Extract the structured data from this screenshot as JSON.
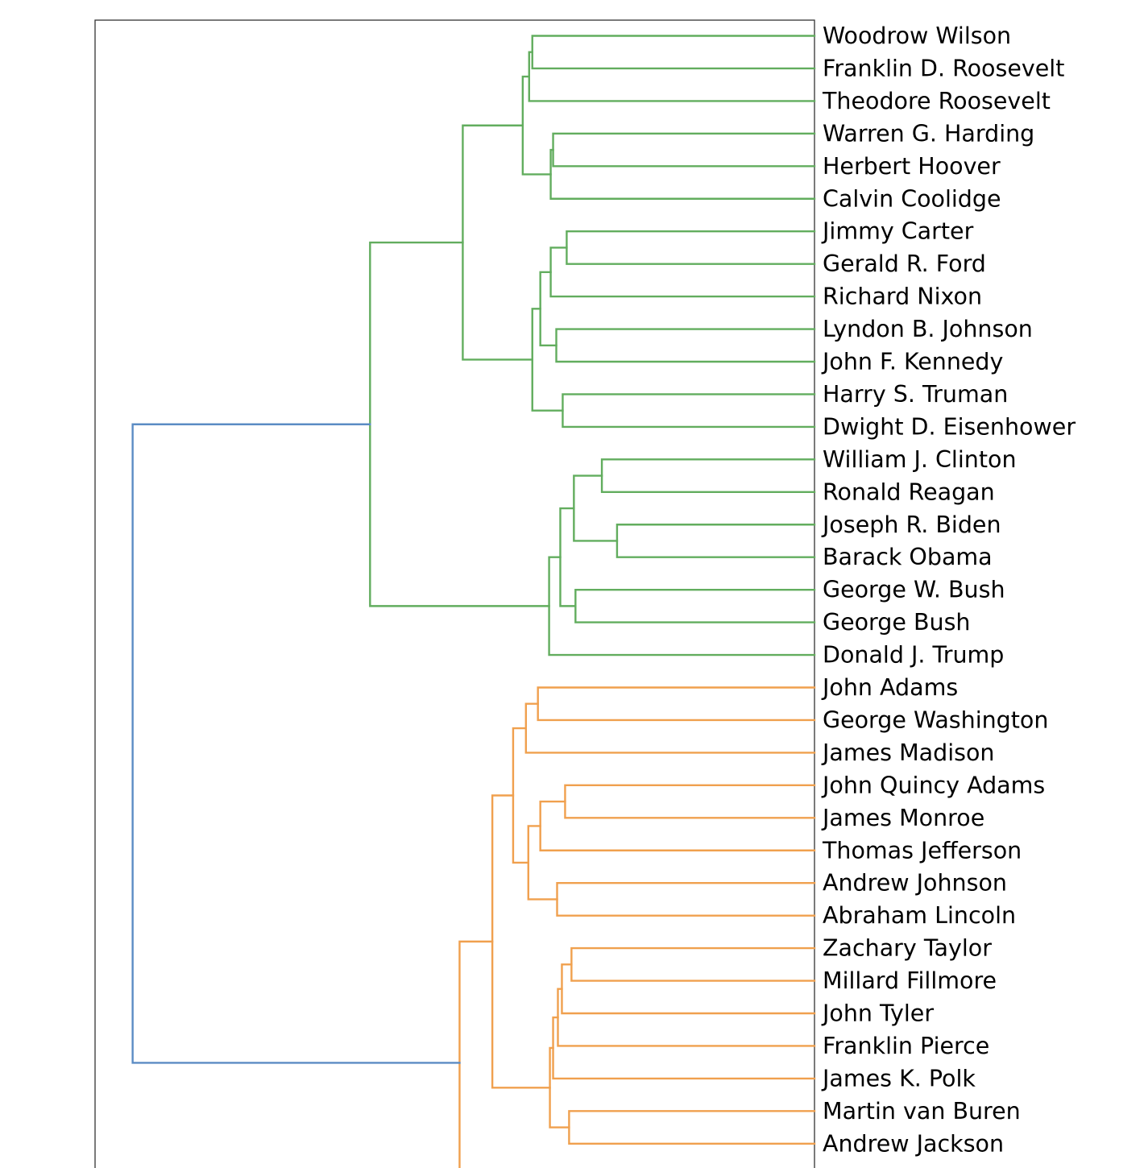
{
  "chart_data": {
    "type": "dendrogram",
    "orientation": "right",
    "title": "",
    "xlabel": "",
    "ylabel": "",
    "grid": false,
    "colors": {
      "green": "#62ad5e",
      "orange": "#f0a04e",
      "blue": "#5b8cc4"
    },
    "leaves": [
      "Woodrow Wilson",
      "Franklin D. Roosevelt",
      "Theodore Roosevelt",
      "Warren G. Harding",
      "Herbert Hoover",
      "Calvin Coolidge",
      "Jimmy Carter",
      "Gerald R. Ford",
      "Richard Nixon",
      "Lyndon B. Johnson",
      "John F. Kennedy",
      "Harry S. Truman",
      "Dwight D. Eisenhower",
      "William J. Clinton",
      "Ronald Reagan",
      "Joseph R. Biden",
      "Barack Obama",
      "George W. Bush",
      "George Bush",
      "Donald J. Trump",
      "John Adams",
      "George Washington",
      "James Madison",
      "John Quincy Adams",
      "James Monroe",
      "Thomas Jefferson",
      "Andrew Johnson",
      "Abraham Lincoln",
      "Zachary Taylor",
      "Millard Fillmore",
      "John Tyler",
      "Franklin Pierce",
      "James K. Polk",
      "Martin van Buren",
      "Andrew Jackson"
    ],
    "merges": [
      {
        "id": "g1",
        "children": [
          "L0",
          "L1"
        ],
        "height": 0.353,
        "color": "green"
      },
      {
        "id": "g2",
        "children": [
          "g1",
          "L2"
        ],
        "height": 0.357,
        "color": "green"
      },
      {
        "id": "g3",
        "children": [
          "L3",
          "L4"
        ],
        "height": 0.327,
        "color": "green"
      },
      {
        "id": "g4",
        "children": [
          "g3",
          "L5"
        ],
        "height": 0.33,
        "color": "green"
      },
      {
        "id": "g5",
        "children": [
          "g2",
          "g4"
        ],
        "height": 0.365,
        "color": "green"
      },
      {
        "id": "g6",
        "children": [
          "L6",
          "L7"
        ],
        "height": 0.31,
        "color": "green"
      },
      {
        "id": "g7",
        "children": [
          "g6",
          "L8"
        ],
        "height": 0.33,
        "color": "green"
      },
      {
        "id": "g8",
        "children": [
          "L9",
          "L10"
        ],
        "height": 0.323,
        "color": "green"
      },
      {
        "id": "g9",
        "children": [
          "g7",
          "g8"
        ],
        "height": 0.343,
        "color": "green"
      },
      {
        "id": "g10",
        "children": [
          "L11",
          "L12"
        ],
        "height": 0.315,
        "color": "green"
      },
      {
        "id": "g11",
        "children": [
          "g9",
          "g10"
        ],
        "height": 0.353,
        "color": "green"
      },
      {
        "id": "g12",
        "children": [
          "g5",
          "g11"
        ],
        "height": 0.44,
        "color": "green"
      },
      {
        "id": "g13",
        "children": [
          "L13",
          "L14"
        ],
        "height": 0.266,
        "color": "green"
      },
      {
        "id": "g14",
        "children": [
          "L15",
          "L16"
        ],
        "height": 0.247,
        "color": "green"
      },
      {
        "id": "g15",
        "children": [
          "g13",
          "g14"
        ],
        "height": 0.301,
        "color": "green"
      },
      {
        "id": "g16",
        "children": [
          "L17",
          "L18"
        ],
        "height": 0.299,
        "color": "green"
      },
      {
        "id": "g17",
        "children": [
          "g15",
          "g16"
        ],
        "height": 0.318,
        "color": "green"
      },
      {
        "id": "g18",
        "children": [
          "g17",
          "L19"
        ],
        "height": 0.332,
        "color": "green"
      },
      {
        "id": "g19",
        "children": [
          "g12",
          "g18"
        ],
        "height": 0.556,
        "color": "green"
      },
      {
        "id": "o1",
        "children": [
          "L20",
          "L21"
        ],
        "height": 0.346,
        "color": "orange"
      },
      {
        "id": "o2",
        "children": [
          "o1",
          "L22"
        ],
        "height": 0.361,
        "color": "orange"
      },
      {
        "id": "o3",
        "children": [
          "L23",
          "L24"
        ],
        "height": 0.312,
        "color": "orange"
      },
      {
        "id": "o4",
        "children": [
          "o3",
          "L25"
        ],
        "height": 0.343,
        "color": "orange"
      },
      {
        "id": "o5",
        "children": [
          "L26",
          "L27"
        ],
        "height": 0.322,
        "color": "orange"
      },
      {
        "id": "o6",
        "children": [
          "o4",
          "o5"
        ],
        "height": 0.358,
        "color": "orange"
      },
      {
        "id": "o7",
        "children": [
          "o2",
          "o6"
        ],
        "height": 0.377,
        "color": "orange"
      },
      {
        "id": "o8",
        "children": [
          "L28",
          "L29"
        ],
        "height": 0.304,
        "color": "orange"
      },
      {
        "id": "o9",
        "children": [
          "o8",
          "L30"
        ],
        "height": 0.316,
        "color": "orange"
      },
      {
        "id": "o10",
        "children": [
          "o9",
          "L31"
        ],
        "height": 0.321,
        "color": "orange"
      },
      {
        "id": "o11",
        "children": [
          "o10",
          "L32"
        ],
        "height": 0.327,
        "color": "orange"
      },
      {
        "id": "o12",
        "children": [
          "L33",
          "L34"
        ],
        "height": 0.307,
        "color": "orange"
      },
      {
        "id": "o13",
        "children": [
          "o11",
          "o12"
        ],
        "height": 0.331,
        "color": "orange"
      },
      {
        "id": "o14",
        "children": [
          "o7",
          "o13"
        ],
        "height": 0.403,
        "color": "orange"
      },
      {
        "id": "o15",
        "children": [
          "o14",
          "cut"
        ],
        "height": 0.444,
        "color": "orange"
      },
      {
        "id": "b1",
        "children": [
          "g19",
          "o15"
        ],
        "height": 0.853,
        "color": "blue"
      }
    ],
    "xlim": [
      0.9,
      0.0
    ]
  }
}
